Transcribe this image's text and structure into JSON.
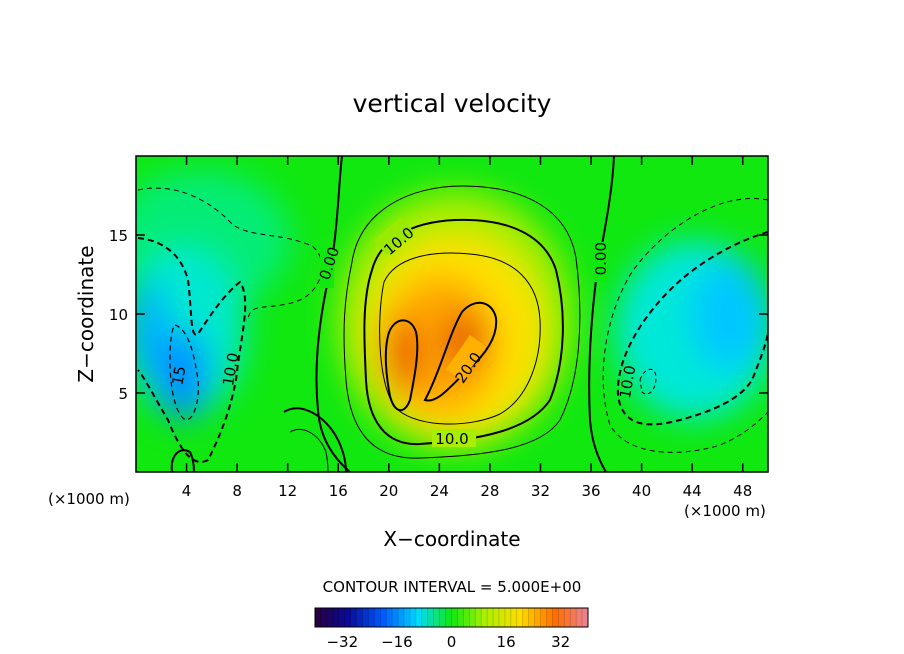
{
  "chart_data": {
    "type": "heatmap",
    "title": "vertical velocity",
    "xlabel": "X−coordinate",
    "ylabel": "Z−coordinate",
    "x_unit_left": "(×1000 m)",
    "x_unit_right": "(×1000 m)",
    "xlim": [
      0,
      50
    ],
    "ylim": [
      0,
      20
    ],
    "x_ticks": [
      4,
      8,
      12,
      16,
      20,
      24,
      28,
      32,
      36,
      40,
      44,
      48
    ],
    "y_ticks": [
      5,
      10,
      15
    ],
    "contour_interval_text": "CONTOUR INTERVAL = 5.000E+00",
    "contour_labels": [
      {
        "text": "0.00",
        "x": 15.3,
        "y": 13.2,
        "angle": -72
      },
      {
        "text": "0.00",
        "x": 36.8,
        "y": 13.5,
        "angle": -90
      },
      {
        "text": "10.0",
        "x": 20.8,
        "y": 14.6,
        "angle": -40
      },
      {
        "text": "10.0",
        "x": 25.0,
        "y": 2.1,
        "angle": 0
      },
      {
        "text": "10.0",
        "x": 7.5,
        "y": 6.5,
        "angle": -80
      },
      {
        "text": "10.0",
        "x": 38.9,
        "y": 5.7,
        "angle": -80
      },
      {
        "text": "20.0",
        "x": 26.3,
        "y": 6.6,
        "angle": -55
      },
      {
        "text": "15",
        "x": 3.4,
        "y": 6.1,
        "angle": -80
      }
    ],
    "colorbar": {
      "min": -40,
      "max": 40,
      "ticks": [
        -32,
        -16,
        0,
        16,
        32
      ],
      "tick_labels": [
        "−32",
        "−16",
        "0",
        "16",
        "32"
      ]
    },
    "colors": {
      "neg_strong": "#0a0a8c",
      "neg": "#00d8ff",
      "zero": "#10e810",
      "pos": "#ffd000",
      "pos_strong": "#e00000"
    }
  }
}
